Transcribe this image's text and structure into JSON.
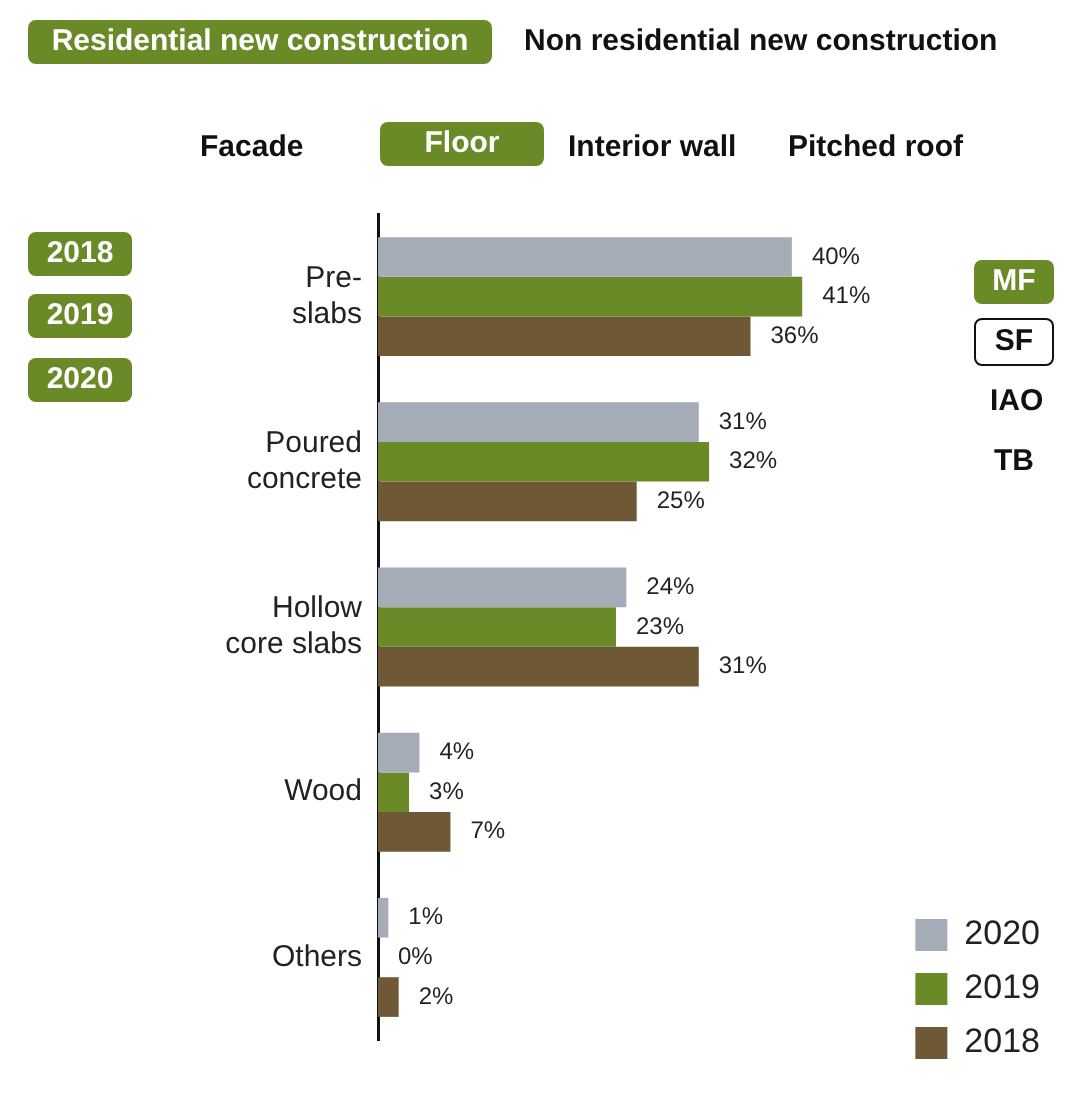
{
  "chart_data": {
    "type": "bar",
    "orientation": "horizontal",
    "categories": [
      "Pre-slabs",
      "Poured concrete",
      "Hollow core slabs",
      "Wood",
      "Others"
    ],
    "series": [
      {
        "name": "2020",
        "color": "#a6abb8",
        "values": [
          40,
          31,
          24,
          4,
          1
        ],
        "value_labels": [
          "40%",
          "31%",
          "24%",
          "4%",
          "1%"
        ]
      },
      {
        "name": "2019",
        "color": "#6a8a28",
        "values": [
          41,
          32,
          23,
          3,
          0
        ],
        "value_labels": [
          "41%",
          "32%",
          "23%",
          "3%",
          "0%"
        ]
      },
      {
        "name": "2018",
        "color": "#6e5836",
        "values": [
          36,
          25,
          31,
          7,
          2
        ],
        "value_labels": [
          "36%",
          "25%",
          "31%",
          "7%",
          "2%"
        ]
      }
    ],
    "legend": "bottom right",
    "annotations": [
      "Residential new construction",
      "Non residential new construction",
      "Facade",
      "Floor",
      "Interior wall",
      "Pitched roof",
      "2018",
      "2019",
      "2020",
      "MF",
      "SF",
      "IAO",
      "TB"
    ]
  }
}
